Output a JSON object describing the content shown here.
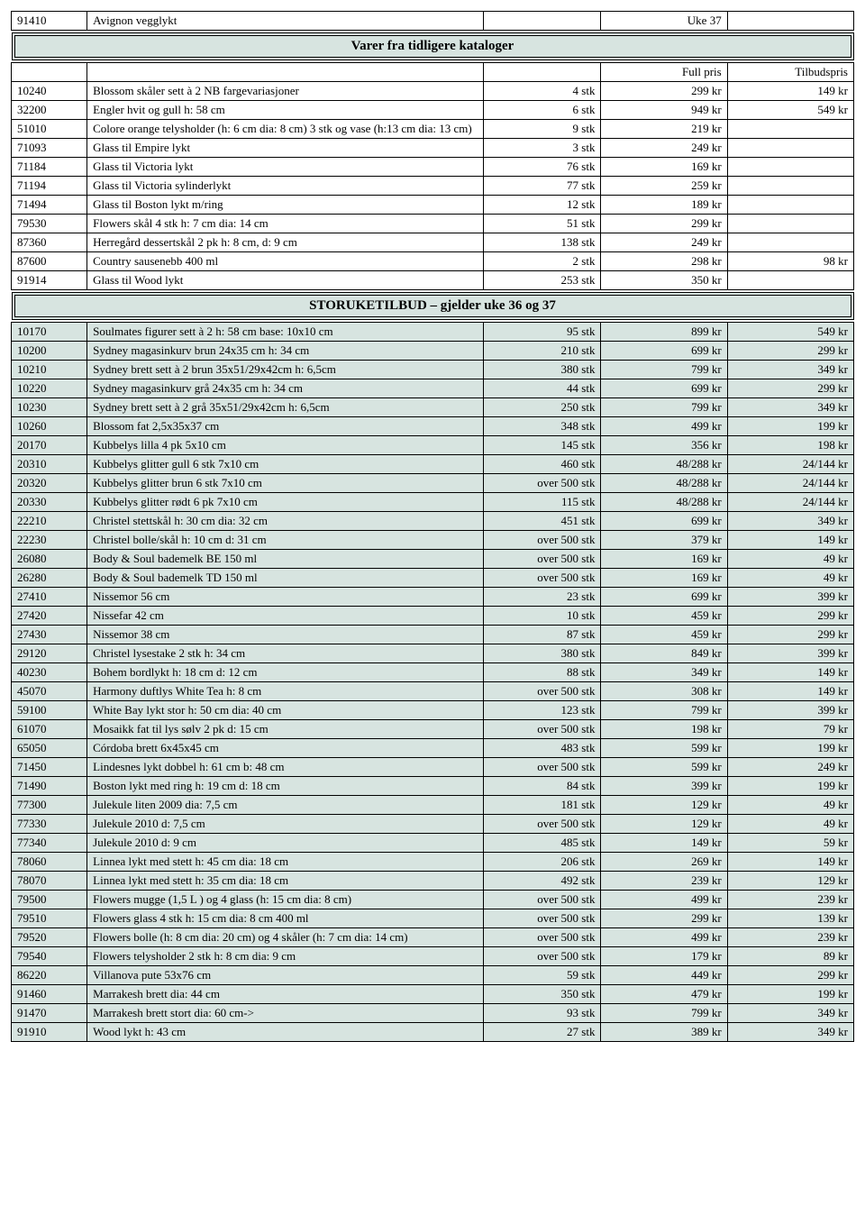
{
  "sections": {
    "s1_title": "Varer fra tidligere kataloger",
    "s2_title": "STORUKETILBUD – gjelder uke 36 og 37",
    "label_full": "Full pris",
    "label_offer": "Tilbudspris"
  },
  "top_row": {
    "id": "91410",
    "desc": "Avignon vegglykt",
    "qty": "",
    "price": "Uke 37",
    "offer": ""
  },
  "rows1": [
    {
      "id": "10240",
      "desc": "Blossom skåler sett à 2 NB fargevariasjoner",
      "qty": "4 stk",
      "price": "299 kr",
      "offer": "149 kr"
    },
    {
      "id": "32200",
      "desc": "Engler hvit og gull h: 58 cm",
      "qty": "6 stk",
      "price": "949 kr",
      "offer": "549 kr"
    },
    {
      "id": "51010",
      "desc": "Colore orange telysholder (h: 6 cm dia: 8 cm) 3 stk og vase (h:13 cm dia: 13 cm)",
      "qty": "9 stk",
      "price": "219 kr",
      "offer": ""
    },
    {
      "id": "71093",
      "desc": "Glass til Empire lykt",
      "qty": "3 stk",
      "price": "249 kr",
      "offer": ""
    },
    {
      "id": "71184",
      "desc": "Glass til Victoria lykt",
      "qty": "76 stk",
      "price": "169 kr",
      "offer": ""
    },
    {
      "id": "71194",
      "desc": "Glass til Victoria sylinderlykt",
      "qty": "77 stk",
      "price": "259 kr",
      "offer": ""
    },
    {
      "id": "71494",
      "desc": "Glass til Boston lykt m/ring",
      "qty": "12 stk",
      "price": "189 kr",
      "offer": ""
    },
    {
      "id": "79530",
      "desc": "Flowers skål 4 stk h: 7 cm dia: 14 cm",
      "qty": "51 stk",
      "price": "299 kr",
      "offer": ""
    },
    {
      "id": "87360",
      "desc": "Herregård dessertskål 2 pk h: 8 cm, d: 9 cm",
      "qty": "138 stk",
      "price": "249 kr",
      "offer": ""
    },
    {
      "id": "87600",
      "desc": "Country sausenebb 400 ml",
      "qty": "2 stk",
      "price": "298 kr",
      "offer": "98 kr"
    },
    {
      "id": "91914",
      "desc": "Glass til Wood lykt",
      "qty": "253 stk",
      "price": "350 kr",
      "offer": ""
    }
  ],
  "rows2": [
    {
      "id": "10170",
      "desc": "Soulmates figurer sett à 2 h: 58 cm base: 10x10 cm",
      "qty": "95 stk",
      "price": "899 kr",
      "offer": "549 kr"
    },
    {
      "id": "10200",
      "desc": "Sydney magasinkurv brun 24x35 cm h: 34 cm",
      "qty": "210 stk",
      "price": "699 kr",
      "offer": "299 kr"
    },
    {
      "id": "10210",
      "desc": "Sydney brett sett à 2 brun 35x51/29x42cm h: 6,5cm",
      "qty": "380 stk",
      "price": "799 kr",
      "offer": "349 kr"
    },
    {
      "id": "10220",
      "desc": "Sydney magasinkurv grå 24x35 cm h: 34 cm",
      "qty": "44 stk",
      "price": "699 kr",
      "offer": "299 kr"
    },
    {
      "id": "10230",
      "desc": "Sydney brett sett à 2 grå 35x51/29x42cm h: 6,5cm",
      "qty": "250 stk",
      "price": "799 kr",
      "offer": "349 kr"
    },
    {
      "id": "10260",
      "desc": "Blossom fat 2,5x35x37 cm",
      "qty": "348 stk",
      "price": "499 kr",
      "offer": "199 kr"
    },
    {
      "id": "20170",
      "desc": "Kubbelys lilla 4 pk 5x10 cm",
      "qty": "145 stk",
      "price": "356 kr",
      "offer": "198 kr"
    },
    {
      "id": "20310",
      "desc": "Kubbelys glitter gull 6 stk 7x10 cm",
      "qty": "460 stk",
      "price": "48/288 kr",
      "offer": "24/144 kr"
    },
    {
      "id": "20320",
      "desc": "Kubbelys glitter brun 6 stk 7x10 cm",
      "qty": "over 500 stk",
      "price": "48/288 kr",
      "offer": "24/144 kr"
    },
    {
      "id": "20330",
      "desc": "Kubbelys glitter rødt 6 pk 7x10 cm",
      "qty": "115 stk",
      "price": "48/288 kr",
      "offer": "24/144 kr"
    },
    {
      "id": "22210",
      "desc": "Christel stettskål h: 30 cm dia: 32 cm",
      "qty": "451 stk",
      "price": "699 kr",
      "offer": "349 kr"
    },
    {
      "id": "22230",
      "desc": "Christel bolle/skål h: 10 cm d: 31 cm",
      "qty": "over 500 stk",
      "price": "379 kr",
      "offer": "149 kr"
    },
    {
      "id": "26080",
      "desc": "Body & Soul bademelk  BE 150 ml",
      "qty": "over 500 stk",
      "price": "169 kr",
      "offer": "49 kr"
    },
    {
      "id": "26280",
      "desc": "Body & Soul bademelk  TD 150 ml",
      "qty": "over 500 stk",
      "price": "169 kr",
      "offer": "49 kr"
    },
    {
      "id": "27410",
      "desc": "Nissemor 56 cm",
      "qty": "23 stk",
      "price": "699 kr",
      "offer": "399 kr"
    },
    {
      "id": "27420",
      "desc": "Nissefar 42 cm",
      "qty": "10 stk",
      "price": "459 kr",
      "offer": "299 kr"
    },
    {
      "id": "27430",
      "desc": "Nissemor 38 cm",
      "qty": "87 stk",
      "price": "459 kr",
      "offer": "299 kr"
    },
    {
      "id": "29120",
      "desc": "Christel lysestake 2 stk h: 34 cm",
      "qty": "380 stk",
      "price": "849 kr",
      "offer": "399 kr"
    },
    {
      "id": "40230",
      "desc": "Bohem bordlykt h: 18 cm d: 12 cm",
      "qty": "88 stk",
      "price": "349 kr",
      "offer": "149 kr"
    },
    {
      "id": "45070",
      "desc": "Harmony duftlys White Tea h: 8 cm",
      "qty": "over 500 stk",
      "price": "308 kr",
      "offer": "149 kr"
    },
    {
      "id": "59100",
      "desc": "White Bay lykt stor h: 50 cm dia: 40 cm",
      "qty": "123 stk",
      "price": "799 kr",
      "offer": "399 kr"
    },
    {
      "id": "61070",
      "desc": "Mosaikk fat til lys sølv 2 pk d: 15 cm",
      "qty": "over 500 stk",
      "price": "198 kr",
      "offer": "79 kr"
    },
    {
      "id": "65050",
      "desc": "Córdoba brett 6x45x45 cm",
      "qty": "483 stk",
      "price": "599 kr",
      "offer": "199 kr"
    },
    {
      "id": "71450",
      "desc": "Lindesnes lykt dobbel h: 61 cm b: 48 cm",
      "qty": "over 500 stk",
      "price": "599 kr",
      "offer": "249 kr"
    },
    {
      "id": "71490",
      "desc": "Boston lykt med ring h: 19 cm d: 18 cm",
      "qty": "84 stk",
      "price": "399 kr",
      "offer": "199 kr"
    },
    {
      "id": "77300",
      "desc": "Julekule liten 2009 dia: 7,5 cm",
      "qty": "181 stk",
      "price": "129 kr",
      "offer": "49 kr"
    },
    {
      "id": "77330",
      "desc": "Julekule 2010 d: 7,5 cm",
      "qty": "over 500 stk",
      "price": "129 kr",
      "offer": "49 kr"
    },
    {
      "id": "77340",
      "desc": "Julekule 2010 d: 9 cm",
      "qty": "485 stk",
      "price": "149 kr",
      "offer": "59 kr"
    },
    {
      "id": "78060",
      "desc": "Linnea lykt med stett h: 45 cm dia: 18 cm",
      "qty": "206 stk",
      "price": "269 kr",
      "offer": "149 kr"
    },
    {
      "id": "78070",
      "desc": "Linnea lykt med stett h: 35 cm dia: 18 cm",
      "qty": "492 stk",
      "price": "239 kr",
      "offer": "129 kr"
    },
    {
      "id": "79500",
      "desc": "Flowers mugge (1,5 L ) og 4 glass (h: 15 cm dia: 8 cm)",
      "qty": "over 500 stk",
      "price": "499 kr",
      "offer": "239 kr"
    },
    {
      "id": "79510",
      "desc": "Flowers glass 4 stk h: 15 cm dia: 8 cm 400 ml",
      "qty": "over 500 stk",
      "price": "299 kr",
      "offer": "139 kr"
    },
    {
      "id": "79520",
      "desc": "Flowers bolle (h: 8 cm dia: 20 cm) og 4 skåler (h: 7 cm dia: 14 cm)",
      "qty": "over 500 stk",
      "price": "499 kr",
      "offer": "239 kr"
    },
    {
      "id": "79540",
      "desc": "Flowers telysholder 2 stk h: 8 cm dia: 9 cm",
      "qty": "over 500 stk",
      "price": "179 kr",
      "offer": "89 kr"
    },
    {
      "id": "86220",
      "desc": "Villanova pute 53x76 cm",
      "qty": "59 stk",
      "price": "449 kr",
      "offer": "299 kr"
    },
    {
      "id": "91460",
      "desc": "Marrakesh brett dia: 44 cm",
      "qty": "350 stk",
      "price": "479 kr",
      "offer": "199 kr"
    },
    {
      "id": "91470",
      "desc": "Marrakesh brett stort dia: 60 cm->",
      "qty": "93 stk",
      "price": "799 kr",
      "offer": "349 kr"
    },
    {
      "id": "91910",
      "desc": "Wood lykt  h: 43 cm",
      "qty": "27 stk",
      "price": "389 kr",
      "offer": "349 kr"
    }
  ]
}
